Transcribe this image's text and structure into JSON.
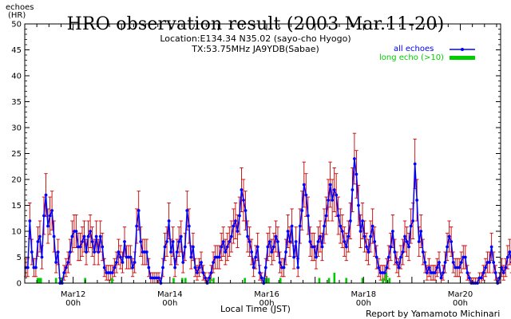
{
  "title": "HRO observation result (2003 Mar.11-20)",
  "location": "Location:E134.34 N35.02 (sayo-cho Hyogo)",
  "tx": "TX:53.75MHz JA9YDB(Sabae)",
  "ylabel_line1": "echoes",
  "ylabel_line2": "(HR)",
  "xlabel": "Local Time (JST)",
  "credit": "Report by Yamamoto Michinari",
  "colors": {
    "all_echoes": "#0000ff",
    "error_bars": "#cc0000",
    "long_echo": "#00cc00",
    "axis": "#000000"
  },
  "chart_data": {
    "type": "line",
    "title": "HRO observation result (2003 Mar.11-20)",
    "xlabel": "Local Time (JST)",
    "ylabel": "echoes (HR)",
    "ylim": [
      0,
      50
    ],
    "yticks": [
      0,
      5,
      10,
      15,
      20,
      25,
      30,
      35,
      40,
      45,
      50
    ],
    "xlim_hours": [
      0,
      236
    ],
    "x_unit": "hours since 2003-03-11 00h JST",
    "xticks": [
      {
        "hour": 24,
        "label1": "Mar12",
        "label2": "00h"
      },
      {
        "hour": 72,
        "label1": "Mar14",
        "label2": "00h"
      },
      {
        "hour": 120,
        "label1": "Mar16",
        "label2": "00h"
      },
      {
        "hour": 168,
        "label1": "Mar18",
        "label2": "00h"
      },
      {
        "hour": 216,
        "label1": "Mar20",
        "label2": "00h"
      }
    ],
    "grid": false,
    "legend_position": "top-right",
    "series": [
      {
        "name": "all echoes",
        "style": "blue line with dots and red error bars",
        "values": [
          3,
          3,
          12,
          6,
          3,
          3,
          8,
          9,
          5,
          13,
          17,
          11,
          13,
          14,
          9,
          4,
          6,
          0,
          0,
          2,
          3,
          4,
          6,
          9,
          10,
          10,
          7,
          7,
          8,
          9,
          6,
          9,
          10,
          8,
          6,
          9,
          6,
          9,
          7,
          3,
          2,
          2,
          2,
          2,
          3,
          4,
          6,
          5,
          4,
          8,
          5,
          5,
          5,
          3,
          4,
          11,
          14,
          8,
          6,
          6,
          6,
          3,
          1,
          1,
          1,
          1,
          1,
          0,
          3,
          7,
          8,
          12,
          6,
          8,
          3,
          6,
          8,
          9,
          4,
          7,
          14,
          11,
          5,
          7,
          3,
          2,
          3,
          4,
          2,
          1,
          0,
          1,
          2,
          4,
          5,
          5,
          5,
          7,
          8,
          6,
          7,
          8,
          9,
          11,
          12,
          10,
          13,
          18,
          16,
          14,
          9,
          8,
          6,
          3,
          5,
          7,
          2,
          1,
          0,
          3,
          7,
          8,
          6,
          7,
          9,
          8,
          4,
          3,
          3,
          6,
          10,
          8,
          11,
          5,
          8,
          3,
          11,
          14,
          19,
          17,
          13,
          8,
          7,
          7,
          5,
          8,
          9,
          7,
          11,
          13,
          16,
          19,
          16,
          18,
          17,
          13,
          11,
          10,
          8,
          7,
          9,
          12,
          18,
          24,
          21,
          15,
          10,
          12,
          9,
          7,
          6,
          9,
          11,
          8,
          5,
          3,
          2,
          2,
          2,
          3,
          5,
          7,
          10,
          6,
          4,
          3,
          5,
          6,
          9,
          8,
          7,
          11,
          12,
          23,
          16,
          8,
          10,
          6,
          4,
          2,
          3,
          2,
          2,
          2,
          3,
          4,
          1,
          2,
          4,
          7,
          9,
          8,
          4,
          3,
          3,
          3,
          4,
          5,
          5,
          2,
          1,
          0,
          0,
          0,
          0,
          1,
          1,
          2,
          3,
          4,
          4,
          7,
          4,
          2,
          0,
          1,
          3,
          2,
          3,
          5,
          6,
          4,
          2,
          2,
          3,
          4,
          3,
          2,
          4,
          4
        ]
      },
      {
        "name": "long echo (>10)",
        "style": "green bars",
        "values": [
          0,
          0,
          0,
          0,
          0,
          0,
          0,
          0,
          0,
          0,
          0,
          1,
          1,
          1,
          1,
          0,
          0,
          0,
          0,
          0,
          0,
          0,
          0,
          0,
          0,
          0,
          0,
          0,
          1,
          0,
          0,
          0,
          0,
          1,
          0,
          0,
          0,
          0,
          0,
          0,
          0,
          0,
          0,
          0,
          0,
          0,
          0,
          0,
          0,
          0,
          0,
          0,
          0,
          0,
          0,
          1,
          0,
          0,
          0,
          0,
          0,
          0,
          0,
          0,
          0,
          0,
          0,
          0,
          0,
          0,
          0,
          0,
          0,
          0,
          0,
          0,
          0,
          0,
          0,
          0,
          1,
          0,
          0,
          0,
          0,
          0,
          0,
          0,
          0,
          0,
          0,
          0,
          0,
          0,
          0,
          0,
          0,
          0,
          0,
          0,
          0,
          0,
          0,
          0,
          0,
          0,
          0,
          0,
          0,
          0,
          0,
          0,
          0,
          0,
          0,
          0,
          0,
          0,
          0,
          0,
          0,
          0,
          0,
          0,
          0,
          0,
          0,
          0,
          0,
          0,
          0,
          0,
          0,
          0,
          0,
          0,
          0,
          1,
          0,
          0,
          0,
          0,
          0,
          0,
          0,
          1,
          0,
          0,
          1,
          0,
          0,
          0,
          0,
          0,
          0,
          0,
          0,
          0,
          0,
          0,
          0,
          0,
          0,
          0,
          0,
          0,
          0,
          0,
          0,
          0,
          0,
          1,
          0,
          0,
          1,
          0,
          0,
          0,
          0,
          0,
          0,
          0,
          0,
          0,
          0,
          0,
          0,
          0,
          0,
          0,
          0,
          0,
          0,
          0,
          0,
          0,
          0,
          0,
          0,
          0,
          0,
          0,
          0,
          1,
          0,
          0,
          0,
          0,
          0,
          0,
          0,
          0,
          0,
          0,
          0,
          0,
          0,
          0,
          0,
          0,
          0,
          0,
          1,
          0,
          0,
          1,
          0,
          0,
          0,
          0,
          0,
          0,
          0,
          0,
          0,
          0,
          1,
          0,
          0,
          0,
          0,
          0,
          0,
          0,
          0,
          0,
          0,
          0,
          0,
          0,
          0,
          0,
          0,
          0,
          0,
          0,
          0,
          0,
          0,
          0,
          0,
          0,
          0,
          0,
          0,
          0,
          0,
          0,
          0,
          0,
          0,
          0,
          1,
          0,
          0,
          0,
          0,
          0,
          0,
          0,
          0,
          1,
          0,
          0,
          0,
          0,
          2,
          0,
          0,
          0,
          0,
          0,
          0,
          0,
          0,
          0,
          0,
          1,
          0,
          0,
          0,
          0,
          0,
          0,
          0,
          0,
          0,
          0,
          0,
          0,
          0,
          0,
          1,
          0,
          0,
          0,
          0,
          0,
          0,
          0,
          0,
          0,
          0,
          0,
          0,
          0,
          0,
          0,
          0,
          0,
          0,
          1,
          0,
          0,
          2,
          0,
          0,
          1,
          0,
          0,
          0,
          0,
          0,
          0,
          0,
          0,
          0,
          0,
          0,
          0,
          0,
          0,
          0,
          0,
          0,
          0,
          0,
          0,
          0,
          0,
          0,
          0,
          0,
          0,
          0,
          0,
          0,
          0,
          0,
          0,
          0,
          0,
          0,
          0,
          0,
          0,
          0,
          0,
          0,
          0,
          0,
          0,
          0,
          0,
          0,
          0,
          0,
          0,
          0,
          0,
          0,
          0,
          0,
          0,
          0,
          0,
          0,
          0,
          0,
          0,
          0,
          0,
          0,
          0,
          0,
          0,
          0,
          0,
          0,
          0,
          0,
          0,
          0,
          0,
          0,
          0,
          0,
          0,
          0,
          0,
          0,
          0,
          0,
          0,
          0,
          0,
          0,
          0,
          0,
          0,
          0,
          0,
          0,
          0,
          0,
          0,
          0,
          0,
          0,
          0,
          0
        ]
      }
    ]
  }
}
